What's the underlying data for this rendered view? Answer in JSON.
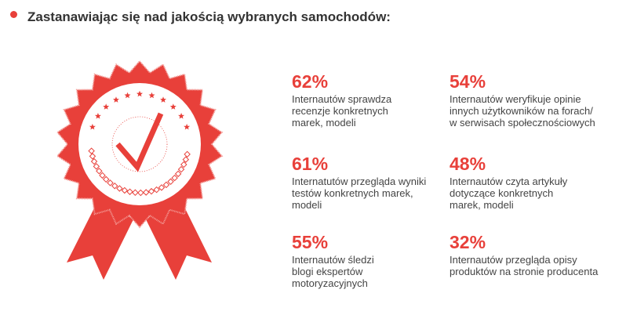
{
  "title": "Zastanawiając się nad jakością wybranych samochodów:",
  "accent": "#e8403a",
  "stats": [
    {
      "value": "62%",
      "text": "Internautów sprawdza recenzje konkretnych marek, modeli"
    },
    {
      "value": "54%",
      "text": "Internautów weryfikuje opinie innych użytkowników na forach/ w serwisach społecznościowych"
    },
    {
      "value": "61%",
      "text": "Internatutów przegląda wyniki testów konkretnych marek, modeli"
    },
    {
      "value": "48%",
      "text": "Internautów czyta artykuły dotyczące konkretnych marek, modeli"
    },
    {
      "value": "55%",
      "text": "Internautów śledzi blogi ekspertów motoryzacyjnych"
    },
    {
      "value": "32%",
      "text": "Internautów przegląda opisy produktów na stronie producenta"
    }
  ]
}
